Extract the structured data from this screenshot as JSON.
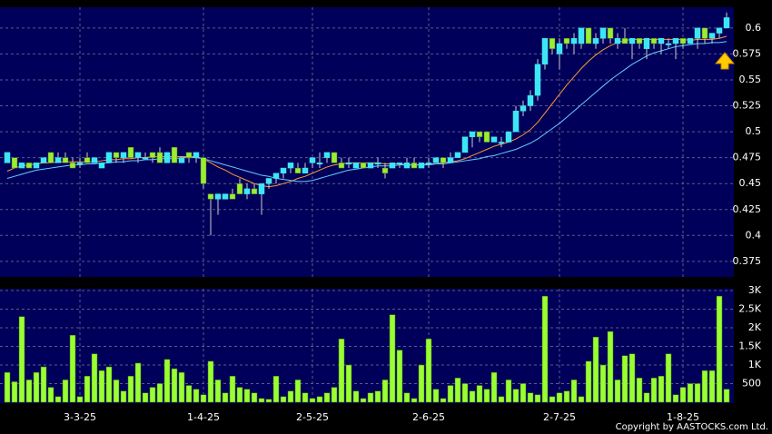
{
  "chart_data": [
    {
      "type": "candlestick",
      "up_color": "#3ee6f5",
      "down_color": "#99ee33",
      "grid": true,
      "xlim": [
        -1,
        100
      ],
      "ylim": [
        0.36,
        0.62
      ],
      "yticks": [
        0.375,
        0.4,
        0.425,
        0.45,
        0.475,
        0.5,
        0.525,
        0.55,
        0.575,
        0.6
      ],
      "xticks": [
        {
          "value": 10,
          "label": "3-3-25"
        },
        {
          "value": 27,
          "label": "1-4-25"
        },
        {
          "value": 42,
          "label": "2-5-25"
        },
        {
          "value": 58,
          "label": "2-6-25"
        },
        {
          "value": 76,
          "label": "2-7-25"
        },
        {
          "value": 93,
          "label": "1-8-25"
        }
      ],
      "ohlc": [
        [
          0.47,
          0.48,
          0.47,
          0.48
        ],
        [
          0.475,
          0.475,
          0.465,
          0.465
        ],
        [
          0.465,
          0.47,
          0.465,
          0.47
        ],
        [
          0.47,
          0.47,
          0.465,
          0.465
        ],
        [
          0.465,
          0.47,
          0.465,
          0.47
        ],
        [
          0.47,
          0.475,
          0.47,
          0.475
        ],
        [
          0.48,
          0.48,
          0.47,
          0.47
        ],
        [
          0.47,
          0.48,
          0.47,
          0.475
        ],
        [
          0.475,
          0.48,
          0.47,
          0.47
        ],
        [
          0.47,
          0.475,
          0.465,
          0.465
        ],
        [
          0.47,
          0.475,
          0.465,
          0.47
        ],
        [
          0.475,
          0.48,
          0.47,
          0.47
        ],
        [
          0.47,
          0.475,
          0.47,
          0.475
        ],
        [
          0.465,
          0.47,
          0.465,
          0.47
        ],
        [
          0.47,
          0.48,
          0.47,
          0.48
        ],
        [
          0.48,
          0.48,
          0.47,
          0.475
        ],
        [
          0.475,
          0.48,
          0.47,
          0.48
        ],
        [
          0.485,
          0.485,
          0.475,
          0.475
        ],
        [
          0.475,
          0.48,
          0.47,
          0.48
        ],
        [
          0.475,
          0.48,
          0.475,
          0.475
        ],
        [
          0.48,
          0.48,
          0.47,
          0.475
        ],
        [
          0.48,
          0.485,
          0.47,
          0.47
        ],
        [
          0.47,
          0.48,
          0.47,
          0.48
        ],
        [
          0.485,
          0.485,
          0.47,
          0.47
        ],
        [
          0.47,
          0.475,
          0.47,
          0.475
        ],
        [
          0.48,
          0.48,
          0.47,
          0.475
        ],
        [
          0.475,
          0.48,
          0.47,
          0.48
        ],
        [
          0.475,
          0.475,
          0.445,
          0.45
        ],
        [
          0.44,
          0.44,
          0.4,
          0.435
        ],
        [
          0.435,
          0.44,
          0.42,
          0.44
        ],
        [
          0.435,
          0.44,
          0.435,
          0.44
        ],
        [
          0.44,
          0.445,
          0.435,
          0.435
        ],
        [
          0.45,
          0.455,
          0.44,
          0.44
        ],
        [
          0.44,
          0.45,
          0.435,
          0.445
        ],
        [
          0.445,
          0.45,
          0.44,
          0.44
        ],
        [
          0.44,
          0.45,
          0.42,
          0.45
        ],
        [
          0.45,
          0.455,
          0.445,
          0.455
        ],
        [
          0.455,
          0.46,
          0.45,
          0.46
        ],
        [
          0.46,
          0.465,
          0.455,
          0.465
        ],
        [
          0.465,
          0.47,
          0.46,
          0.47
        ],
        [
          0.465,
          0.47,
          0.46,
          0.46
        ],
        [
          0.46,
          0.47,
          0.46,
          0.465
        ],
        [
          0.47,
          0.475,
          0.465,
          0.475
        ],
        [
          0.47,
          0.48,
          0.465,
          0.47
        ],
        [
          0.475,
          0.48,
          0.47,
          0.48
        ],
        [
          0.48,
          0.48,
          0.47,
          0.47
        ],
        [
          0.47,
          0.475,
          0.465,
          0.465
        ],
        [
          0.47,
          0.475,
          0.465,
          0.47
        ],
        [
          0.465,
          0.47,
          0.465,
          0.47
        ],
        [
          0.47,
          0.47,
          0.465,
          0.465
        ],
        [
          0.465,
          0.47,
          0.465,
          0.47
        ],
        [
          0.47,
          0.475,
          0.465,
          0.47
        ],
        [
          0.465,
          0.47,
          0.455,
          0.46
        ],
        [
          0.465,
          0.47,
          0.465,
          0.47
        ],
        [
          0.47,
          0.47,
          0.465,
          0.47
        ],
        [
          0.465,
          0.475,
          0.465,
          0.47
        ],
        [
          0.47,
          0.475,
          0.465,
          0.465
        ],
        [
          0.465,
          0.47,
          0.465,
          0.47
        ],
        [
          0.47,
          0.475,
          0.465,
          0.47
        ],
        [
          0.47,
          0.475,
          0.47,
          0.475
        ],
        [
          0.475,
          0.475,
          0.465,
          0.47
        ],
        [
          0.47,
          0.48,
          0.47,
          0.475
        ],
        [
          0.475,
          0.48,
          0.475,
          0.48
        ],
        [
          0.48,
          0.495,
          0.48,
          0.495
        ],
        [
          0.495,
          0.5,
          0.485,
          0.5
        ],
        [
          0.5,
          0.5,
          0.49,
          0.495
        ],
        [
          0.5,
          0.5,
          0.49,
          0.49
        ],
        [
          0.49,
          0.495,
          0.49,
          0.495
        ],
        [
          0.49,
          0.495,
          0.485,
          0.49
        ],
        [
          0.49,
          0.5,
          0.49,
          0.5
        ],
        [
          0.5,
          0.525,
          0.5,
          0.52
        ],
        [
          0.52,
          0.53,
          0.515,
          0.525
        ],
        [
          0.525,
          0.54,
          0.52,
          0.535
        ],
        [
          0.535,
          0.57,
          0.53,
          0.565
        ],
        [
          0.565,
          0.59,
          0.56,
          0.59
        ],
        [
          0.59,
          0.59,
          0.575,
          0.58
        ],
        [
          0.575,
          0.59,
          0.56,
          0.585
        ],
        [
          0.59,
          0.59,
          0.58,
          0.585
        ],
        [
          0.585,
          0.595,
          0.575,
          0.59
        ],
        [
          0.585,
          0.6,
          0.58,
          0.6
        ],
        [
          0.6,
          0.6,
          0.585,
          0.585
        ],
        [
          0.585,
          0.595,
          0.58,
          0.59
        ],
        [
          0.59,
          0.6,
          0.585,
          0.6
        ],
        [
          0.6,
          0.6,
          0.585,
          0.59
        ],
        [
          0.585,
          0.595,
          0.58,
          0.59
        ],
        [
          0.59,
          0.6,
          0.585,
          0.585
        ],
        [
          0.585,
          0.59,
          0.57,
          0.59
        ],
        [
          0.59,
          0.59,
          0.58,
          0.585
        ],
        [
          0.58,
          0.59,
          0.57,
          0.59
        ],
        [
          0.59,
          0.59,
          0.58,
          0.585
        ],
        [
          0.585,
          0.59,
          0.575,
          0.59
        ],
        [
          0.585,
          0.59,
          0.58,
          0.585
        ],
        [
          0.585,
          0.59,
          0.57,
          0.59
        ],
        [
          0.59,
          0.59,
          0.58,
          0.585
        ],
        [
          0.585,
          0.59,
          0.585,
          0.59
        ],
        [
          0.59,
          0.6,
          0.58,
          0.6
        ],
        [
          0.6,
          0.6,
          0.585,
          0.59
        ],
        [
          0.59,
          0.595,
          0.585,
          0.595
        ],
        [
          0.595,
          0.6,
          0.59,
          0.6
        ],
        [
          0.6,
          0.615,
          0.6,
          0.61
        ]
      ],
      "lines": [
        {
          "color": "#ff9933",
          "values": [
            0.462,
            0.465,
            0.467,
            0.468,
            0.469,
            0.47,
            0.47,
            0.471,
            0.471,
            0.471,
            0.471,
            0.471,
            0.471,
            0.472,
            0.473,
            0.473,
            0.474,
            0.474,
            0.475,
            0.475,
            0.476,
            0.476,
            0.476,
            0.476,
            0.476,
            0.476,
            0.476,
            0.474,
            0.47,
            0.466,
            0.463,
            0.459,
            0.456,
            0.453,
            0.45,
            0.448,
            0.447,
            0.448,
            0.45,
            0.452,
            0.455,
            0.457,
            0.46,
            0.463,
            0.466,
            0.468,
            0.469,
            0.47,
            0.47,
            0.47,
            0.47,
            0.47,
            0.469,
            0.469,
            0.469,
            0.468,
            0.468,
            0.468,
            0.469,
            0.469,
            0.47,
            0.471,
            0.472,
            0.474,
            0.477,
            0.48,
            0.483,
            0.486,
            0.488,
            0.49,
            0.493,
            0.497,
            0.502,
            0.509,
            0.518,
            0.527,
            0.536,
            0.545,
            0.553,
            0.561,
            0.568,
            0.574,
            0.579,
            0.583,
            0.586,
            0.588,
            0.589,
            0.589,
            0.589,
            0.589,
            0.589,
            0.589,
            0.589,
            0.589,
            0.588,
            0.589,
            0.589,
            0.589,
            0.59,
            0.592
          ]
        },
        {
          "color": "#66ccff",
          "values": [
            0.455,
            0.457,
            0.459,
            0.461,
            0.463,
            0.464,
            0.465,
            0.466,
            0.467,
            0.468,
            0.468,
            0.469,
            0.469,
            0.47,
            0.47,
            0.471,
            0.471,
            0.472,
            0.472,
            0.473,
            0.473,
            0.474,
            0.474,
            0.474,
            0.475,
            0.475,
            0.475,
            0.474,
            0.472,
            0.47,
            0.468,
            0.466,
            0.464,
            0.462,
            0.46,
            0.458,
            0.457,
            0.455,
            0.454,
            0.453,
            0.452,
            0.452,
            0.453,
            0.455,
            0.457,
            0.459,
            0.461,
            0.463,
            0.464,
            0.465,
            0.466,
            0.467,
            0.467,
            0.467,
            0.468,
            0.468,
            0.468,
            0.468,
            0.468,
            0.469,
            0.469,
            0.47,
            0.471,
            0.472,
            0.473,
            0.474,
            0.476,
            0.477,
            0.479,
            0.481,
            0.483,
            0.486,
            0.489,
            0.493,
            0.498,
            0.503,
            0.508,
            0.514,
            0.52,
            0.526,
            0.532,
            0.538,
            0.544,
            0.55,
            0.555,
            0.56,
            0.565,
            0.569,
            0.573,
            0.576,
            0.578,
            0.58,
            0.582,
            0.583,
            0.584,
            0.585,
            0.585,
            0.586,
            0.586,
            0.587
          ]
        }
      ]
    },
    {
      "type": "bar",
      "color": "#99ff33",
      "grid": true,
      "xlim": [
        -1,
        100
      ],
      "ylim": [
        0,
        3000
      ],
      "yticks": [
        500,
        {
          "value": 1000,
          "label": "1K"
        },
        {
          "value": 1500,
          "label": "1.5K"
        },
        {
          "value": 2000,
          "label": "2K"
        },
        {
          "value": 2500,
          "label": "2.5K"
        },
        {
          "value": 3000,
          "label": "3K"
        }
      ],
      "values": [
        800,
        550,
        2300,
        600,
        800,
        950,
        400,
        150,
        600,
        1800,
        150,
        700,
        1300,
        850,
        950,
        600,
        300,
        700,
        1050,
        250,
        400,
        500,
        1150,
        900,
        800,
        450,
        350,
        200,
        1100,
        600,
        250,
        700,
        400,
        350,
        250,
        100,
        80,
        700,
        150,
        300,
        600,
        250,
        100,
        150,
        250,
        400,
        1700,
        1000,
        300,
        100,
        250,
        300,
        600,
        2350,
        1400,
        250,
        100,
        1000,
        1700,
        350,
        100,
        450,
        650,
        500,
        300,
        450,
        350,
        800,
        150,
        600,
        350,
        500,
        250,
        200,
        2850,
        150,
        250,
        300,
        600,
        150,
        1100,
        1750,
        1000,
        1900,
        600,
        1250,
        1300,
        650,
        250,
        650,
        700,
        1300,
        200,
        400,
        500,
        500,
        850,
        850,
        2850,
        350
      ],
      "annotation": "Copyright by AASTOCKS.com Ltd."
    }
  ]
}
